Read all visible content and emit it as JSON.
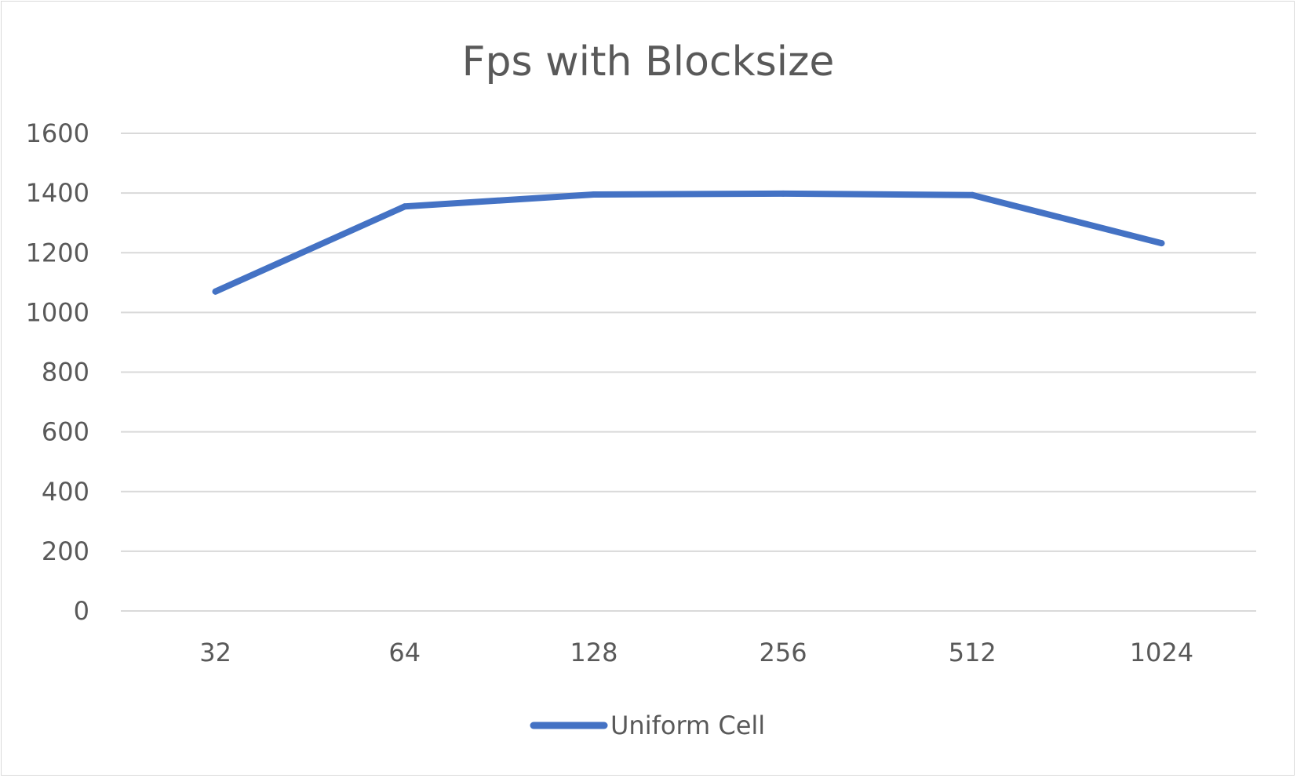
{
  "chart_data": {
    "type": "line",
    "title": "Fps with Blocksize",
    "xlabel": "",
    "ylabel": "",
    "categories": [
      "32",
      "64",
      "128",
      "256",
      "512",
      "1024"
    ],
    "series": [
      {
        "name": "Uniform Cell",
        "values": [
          1070,
          1355,
          1395,
          1398,
          1393,
          1232
        ]
      }
    ],
    "ylim": [
      0,
      1600
    ],
    "yticks": [
      "0",
      "200",
      "400",
      "600",
      "800",
      "1000",
      "1200",
      "1400",
      "1600"
    ],
    "grid": true,
    "legend_position": "bottom",
    "series_color": "#4472c4"
  }
}
